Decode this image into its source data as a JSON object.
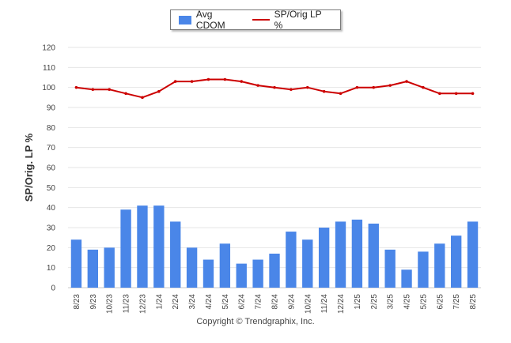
{
  "legend": {
    "bar_label": "Avg CDOM",
    "line_label": "SP/Orig LP %"
  },
  "footer": {
    "copyright": "Copyright © Trendgraphix, Inc."
  },
  "colors": {
    "bar": "#4a86e8",
    "line": "#cc0000",
    "grid": "#e6e6e6"
  },
  "chart_data": {
    "type": "bar",
    "categories": [
      "8/23",
      "9/23",
      "10/23",
      "11/23",
      "12/23",
      "1/24",
      "2/24",
      "3/24",
      "4/24",
      "5/24",
      "6/24",
      "7/24",
      "8/24",
      "9/24",
      "10/24",
      "11/24",
      "12/24",
      "1/25",
      "2/25",
      "3/25",
      "4/25",
      "5/25",
      "6/25",
      "7/25",
      "8/25"
    ],
    "series": [
      {
        "name": "Avg CDOM",
        "type": "bar",
        "values": [
          24,
          19,
          20,
          39,
          41,
          41,
          33,
          20,
          14,
          22,
          12,
          14,
          17,
          28,
          24,
          30,
          33,
          34,
          32,
          19,
          9,
          18,
          22,
          26,
          33
        ]
      },
      {
        "name": "SP/Orig LP %",
        "type": "line",
        "values": [
          100,
          99,
          99,
          97,
          95,
          98,
          103,
          103,
          104,
          104,
          103,
          101,
          100,
          99,
          100,
          98,
          97,
          100,
          100,
          101,
          103,
          100,
          97,
          97,
          97
        ]
      }
    ],
    "ylabel": "SP/Orig. LP %",
    "xlabel": "",
    "ylim": [
      0,
      120
    ],
    "yticks": [
      0,
      10,
      20,
      30,
      40,
      50,
      60,
      70,
      80,
      90,
      100,
      110,
      120
    ],
    "grid": true,
    "legend_position": "top-center"
  }
}
